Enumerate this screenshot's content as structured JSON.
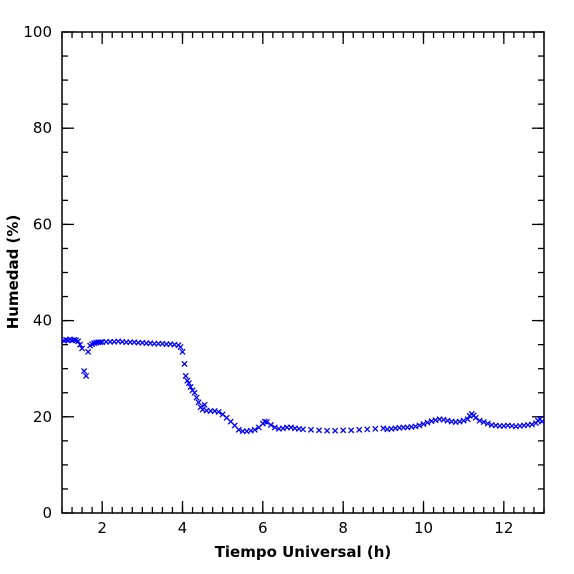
{
  "chart_data": {
    "type": "scatter",
    "title": "",
    "xlabel": "Tiempo Universal (h)",
    "ylabel": "Humedad (%)",
    "xlim": [
      1.0,
      13.0
    ],
    "ylim": [
      0,
      100
    ],
    "x_ticks": [
      2,
      4,
      6,
      8,
      10,
      12
    ],
    "y_ticks": [
      0,
      20,
      40,
      60,
      80,
      100
    ],
    "x_minor_step": 0.25,
    "y_minor_step": 5,
    "grid": false,
    "legend": "none",
    "marker": "x",
    "color": "#0000ff",
    "series": [
      {
        "points": [
          [
            1.05,
            35.8
          ],
          [
            1.1,
            36.0
          ],
          [
            1.15,
            35.9
          ],
          [
            1.2,
            36.1
          ],
          [
            1.25,
            35.9
          ],
          [
            1.3,
            36.0
          ],
          [
            1.35,
            35.9
          ],
          [
            1.4,
            35.7
          ],
          [
            1.45,
            35.0
          ],
          [
            1.5,
            34.2
          ],
          [
            1.55,
            29.5
          ],
          [
            1.6,
            28.5
          ],
          [
            1.65,
            33.5
          ],
          [
            1.7,
            34.8
          ],
          [
            1.75,
            35.1
          ],
          [
            1.8,
            35.3
          ],
          [
            1.85,
            35.4
          ],
          [
            1.9,
            35.5
          ],
          [
            1.95,
            35.5
          ],
          [
            2.0,
            35.5
          ],
          [
            2.1,
            35.6
          ],
          [
            2.2,
            35.6
          ],
          [
            2.3,
            35.6
          ],
          [
            2.4,
            35.7
          ],
          [
            2.5,
            35.6
          ],
          [
            2.6,
            35.5
          ],
          [
            2.7,
            35.5
          ],
          [
            2.8,
            35.5
          ],
          [
            2.9,
            35.4
          ],
          [
            3.0,
            35.4
          ],
          [
            3.1,
            35.3
          ],
          [
            3.2,
            35.3
          ],
          [
            3.3,
            35.2
          ],
          [
            3.4,
            35.2
          ],
          [
            3.5,
            35.2
          ],
          [
            3.6,
            35.1
          ],
          [
            3.7,
            35.1
          ],
          [
            3.8,
            35.0
          ],
          [
            3.9,
            34.9
          ],
          [
            3.95,
            34.5
          ],
          [
            4.0,
            33.5
          ],
          [
            4.05,
            31.0
          ],
          [
            4.08,
            28.5
          ],
          [
            4.12,
            27.5
          ],
          [
            4.16,
            27.0
          ],
          [
            4.2,
            26.2
          ],
          [
            4.25,
            25.5
          ],
          [
            4.3,
            25.0
          ],
          [
            4.35,
            24.0
          ],
          [
            4.4,
            23.0
          ],
          [
            4.45,
            22.0
          ],
          [
            4.5,
            21.5
          ],
          [
            4.55,
            22.5
          ],
          [
            4.6,
            21.3
          ],
          [
            4.7,
            21.2
          ],
          [
            4.8,
            21.2
          ],
          [
            4.9,
            21.0
          ],
          [
            5.0,
            20.5
          ],
          [
            5.1,
            19.8
          ],
          [
            5.2,
            19.0
          ],
          [
            5.3,
            18.2
          ],
          [
            5.4,
            17.3
          ],
          [
            5.5,
            17.0
          ],
          [
            5.6,
            17.0
          ],
          [
            5.7,
            17.1
          ],
          [
            5.8,
            17.3
          ],
          [
            5.9,
            17.8
          ],
          [
            6.0,
            18.6
          ],
          [
            6.05,
            19.0
          ],
          [
            6.1,
            18.9
          ],
          [
            6.2,
            18.3
          ],
          [
            6.3,
            17.8
          ],
          [
            6.4,
            17.5
          ],
          [
            6.5,
            17.6
          ],
          [
            6.6,
            17.8
          ],
          [
            6.7,
            17.8
          ],
          [
            6.8,
            17.6
          ],
          [
            6.9,
            17.5
          ],
          [
            7.0,
            17.4
          ],
          [
            7.2,
            17.3
          ],
          [
            7.4,
            17.2
          ],
          [
            7.6,
            17.1
          ],
          [
            7.8,
            17.1
          ],
          [
            8.0,
            17.2
          ],
          [
            8.2,
            17.2
          ],
          [
            8.4,
            17.3
          ],
          [
            8.6,
            17.4
          ],
          [
            8.8,
            17.5
          ],
          [
            9.0,
            17.6
          ],
          [
            9.1,
            17.4
          ],
          [
            9.2,
            17.5
          ],
          [
            9.3,
            17.6
          ],
          [
            9.4,
            17.7
          ],
          [
            9.5,
            17.8
          ],
          [
            9.6,
            17.8
          ],
          [
            9.7,
            17.9
          ],
          [
            9.8,
            18.0
          ],
          [
            9.9,
            18.2
          ],
          [
            10.0,
            18.5
          ],
          [
            10.1,
            18.8
          ],
          [
            10.2,
            19.1
          ],
          [
            10.3,
            19.3
          ],
          [
            10.4,
            19.5
          ],
          [
            10.5,
            19.4
          ],
          [
            10.6,
            19.2
          ],
          [
            10.7,
            19.0
          ],
          [
            10.8,
            18.9
          ],
          [
            10.9,
            19.0
          ],
          [
            11.0,
            19.2
          ],
          [
            11.1,
            19.5
          ],
          [
            11.15,
            20.2
          ],
          [
            11.2,
            20.6
          ],
          [
            11.25,
            20.3
          ],
          [
            11.3,
            19.8
          ],
          [
            11.4,
            19.2
          ],
          [
            11.5,
            18.9
          ],
          [
            11.6,
            18.6
          ],
          [
            11.7,
            18.3
          ],
          [
            11.8,
            18.2
          ],
          [
            11.9,
            18.1
          ],
          [
            12.0,
            18.1
          ],
          [
            12.1,
            18.2
          ],
          [
            12.2,
            18.1
          ],
          [
            12.3,
            18.0
          ],
          [
            12.4,
            18.1
          ],
          [
            12.5,
            18.2
          ],
          [
            12.6,
            18.3
          ],
          [
            12.7,
            18.4
          ],
          [
            12.8,
            18.7
          ],
          [
            12.85,
            19.2
          ],
          [
            12.9,
            19.5
          ],
          [
            12.95,
            19.0
          ]
        ]
      }
    ]
  }
}
